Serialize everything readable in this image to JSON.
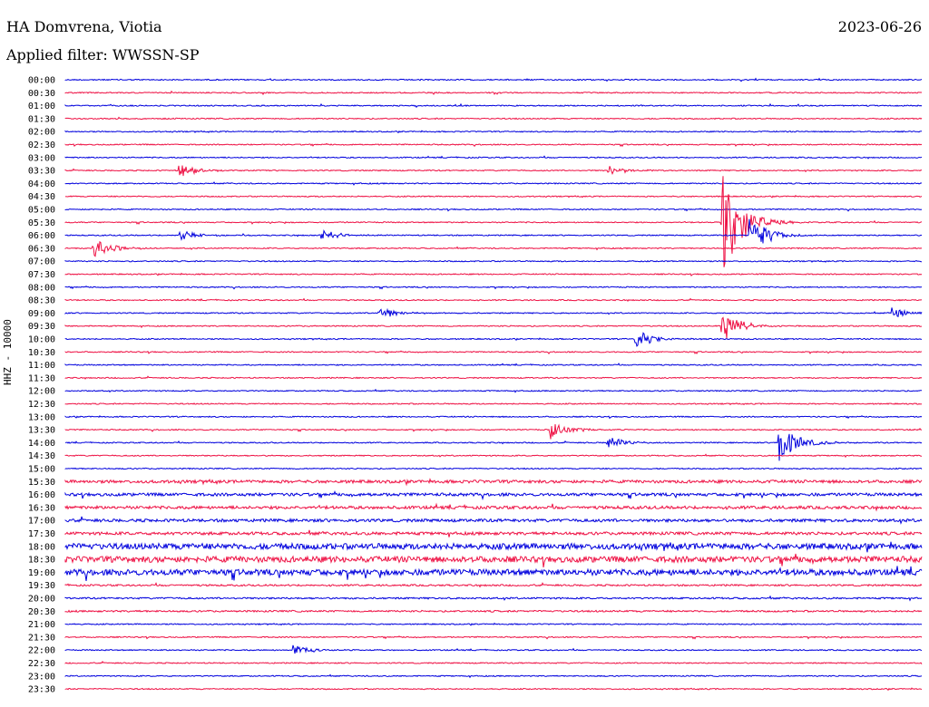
{
  "header": {
    "station": "HA Domvrena, Viotia",
    "date": "2023-06-26",
    "filter": "Applied filter: WWSSN-SP"
  },
  "chart_data": {
    "type": "line",
    "title": "HA Domvrena, Viotia",
    "date": "2023-06-26",
    "filter": "Applied filter: WWSSN-SP",
    "ylabel": "HHZ - 10000",
    "rows": [
      "00:00",
      "00:30",
      "01:00",
      "01:30",
      "02:00",
      "02:30",
      "03:00",
      "03:30",
      "04:00",
      "04:30",
      "05:00",
      "05:30",
      "06:00",
      "06:30",
      "07:00",
      "07:30",
      "08:00",
      "08:30",
      "09:00",
      "09:30",
      "10:00",
      "10:30",
      "11:00",
      "11:30",
      "12:00",
      "12:30",
      "13:00",
      "13:30",
      "14:00",
      "14:30",
      "15:00",
      "15:30",
      "16:00",
      "16:30",
      "17:00",
      "17:30",
      "18:00",
      "18:30",
      "19:00",
      "19:30",
      "20:00",
      "20:30",
      "21:00",
      "21:30",
      "22:00",
      "22:30",
      "23:00",
      "23:30"
    ],
    "row_minutes": 30,
    "colors": [
      "#0000dd",
      "#ee1144"
    ],
    "events": [
      {
        "row": "03:30",
        "minute": 4,
        "amplitude": 0.5
      },
      {
        "row": "03:30",
        "minute": 19,
        "amplitude": 0.4
      },
      {
        "row": "05:30",
        "minute": 23,
        "amplitude": 5
      },
      {
        "row": "06:00",
        "minute": 4,
        "amplitude": 0.4
      },
      {
        "row": "06:00",
        "minute": 9,
        "amplitude": 0.4
      },
      {
        "row": "06:00",
        "minute": 24,
        "amplitude": 1.5
      },
      {
        "row": "06:30",
        "minute": 1,
        "amplitude": 0.8
      },
      {
        "row": "09:00",
        "minute": 11,
        "amplitude": 0.5
      },
      {
        "row": "09:00",
        "minute": 29,
        "amplitude": 0.4
      },
      {
        "row": "09:30",
        "minute": 23,
        "amplitude": 1.3
      },
      {
        "row": "10:00",
        "minute": 20,
        "amplitude": 0.7
      },
      {
        "row": "13:30",
        "minute": 17,
        "amplitude": 0.8
      },
      {
        "row": "14:00",
        "minute": 25,
        "amplitude": 1.6
      },
      {
        "row": "14:00",
        "minute": 19,
        "amplitude": 0.5
      },
      {
        "row": "22:00",
        "minute": 8,
        "amplitude": 0.4
      }
    ]
  }
}
